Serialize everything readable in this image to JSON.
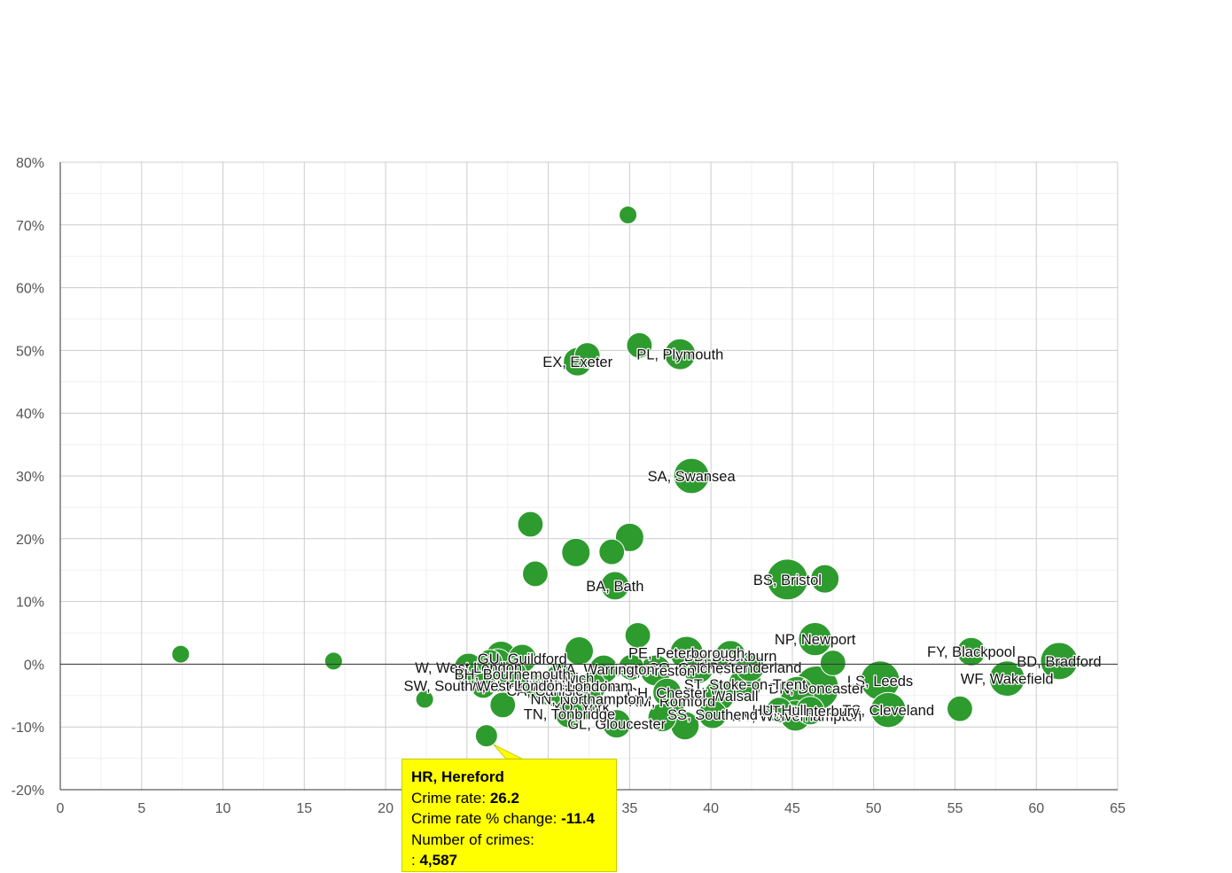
{
  "chart_data": {
    "type": "scatter",
    "title": "",
    "xlabel": "",
    "ylabel": "",
    "xlim": [
      0,
      65
    ],
    "ylim": [
      -20,
      80
    ],
    "x_ticks": [
      "0",
      "5",
      "10",
      "15",
      "20",
      "25",
      "30",
      "35",
      "40",
      "45",
      "50",
      "55",
      "60",
      "65"
    ],
    "y_ticks": [
      "-20%",
      "-10%",
      "0%",
      "10%",
      "20%",
      "30%",
      "40%",
      "50%",
      "60%",
      "70%",
      "80%"
    ],
    "grid": true,
    "bubble_color": "#2e9b2e",
    "points": [
      {
        "x": 7.4,
        "y": 1.6,
        "size": 1,
        "label": ""
      },
      {
        "x": 16.8,
        "y": 0.5,
        "size": 1,
        "label": ""
      },
      {
        "x": 22.4,
        "y": -5.6,
        "size": 1,
        "label": ""
      },
      {
        "x": 26.2,
        "y": -11.4,
        "size": 2,
        "label": ""
      },
      {
        "x": 34.9,
        "y": 71.6,
        "size": 1,
        "label": ""
      },
      {
        "x": 35.6,
        "y": 50.8,
        "size": 3,
        "label": ""
      },
      {
        "x": 38.1,
        "y": 49.4,
        "size": 5,
        "label": "PL, Plymouth"
      },
      {
        "x": 32.4,
        "y": 49.2,
        "size": 3,
        "label": ""
      },
      {
        "x": 31.8,
        "y": 48.2,
        "size": 4,
        "label": "EX, Exeter"
      },
      {
        "x": 38.8,
        "y": 30.0,
        "size": 7,
        "label": "SA, Swansea"
      },
      {
        "x": 28.9,
        "y": 22.3,
        "size": 3,
        "label": ""
      },
      {
        "x": 35.0,
        "y": 20.2,
        "size": 4,
        "label": ""
      },
      {
        "x": 31.7,
        "y": 17.8,
        "size": 4,
        "label": ""
      },
      {
        "x": 33.9,
        "y": 17.9,
        "size": 3,
        "label": ""
      },
      {
        "x": 29.2,
        "y": 14.4,
        "size": 3,
        "label": ""
      },
      {
        "x": 34.1,
        "y": 12.5,
        "size": 4,
        "label": "BA, Bath"
      },
      {
        "x": 44.7,
        "y": 13.5,
        "size": 10,
        "label": "BS, Bristol"
      },
      {
        "x": 47.0,
        "y": 13.6,
        "size": 4,
        "label": ""
      },
      {
        "x": 35.5,
        "y": 4.6,
        "size": 3,
        "label": ""
      },
      {
        "x": 46.4,
        "y": 4.0,
        "size": 6,
        "label": "NP, Newport"
      },
      {
        "x": 56.0,
        "y": 2.0,
        "size": 4,
        "label": "FY, Blackpool"
      },
      {
        "x": 61.4,
        "y": 0.5,
        "size": 8,
        "label": "BD, Bradford"
      },
      {
        "x": 58.2,
        "y": -2.3,
        "size": 7,
        "label": "WF, Wakefield"
      },
      {
        "x": 55.3,
        "y": -7.1,
        "size": 3,
        "label": ""
      },
      {
        "x": 50.9,
        "y": -7.3,
        "size": 7,
        "label": "TS, Cleveland"
      },
      {
        "x": 50.4,
        "y": -2.6,
        "size": 9,
        "label": "LS, Leeds"
      },
      {
        "x": 47.5,
        "y": 0.2,
        "size": 3,
        "label": ""
      },
      {
        "x": 46.5,
        "y": -3.8,
        "size": 12,
        "label": "DN, Doncaster"
      },
      {
        "x": 45.3,
        "y": -4.6,
        "size": 6,
        "label": ""
      },
      {
        "x": 45.2,
        "y": -8.2,
        "size": 5,
        "label": "WV, Wolverhampton"
      },
      {
        "x": 46.1,
        "y": -7.4,
        "size": 4,
        "label": "CT, Canterbury"
      },
      {
        "x": 44.2,
        "y": -7.3,
        "size": 3,
        "label": "HU, Hull"
      },
      {
        "x": 42.1,
        "y": -3.2,
        "size": 6,
        "label": "ST, Stoke-on-Trent"
      },
      {
        "x": 42.4,
        "y": -0.5,
        "size": 4,
        "label": "SR, Sunderland"
      },
      {
        "x": 41.2,
        "y": 1.3,
        "size": 5,
        "label": "BB, Blackburn"
      },
      {
        "x": 40.5,
        "y": -5.0,
        "size": 5,
        "label": "WS, Walsall"
      },
      {
        "x": 40.1,
        "y": -8.0,
        "size": 4,
        "label": "SS, Southend"
      },
      {
        "x": 38.5,
        "y": 1.8,
        "size": 6,
        "label": "PE, Peterborough"
      },
      {
        "x": 39.2,
        "y": -0.6,
        "size": 5,
        "label": "CO, Colchester"
      },
      {
        "x": 38.4,
        "y": -9.8,
        "size": 4,
        "label": ""
      },
      {
        "x": 37.6,
        "y": -5.9,
        "size": 4,
        "label": "RM, Romford"
      },
      {
        "x": 37.3,
        "y": -4.5,
        "size": 4,
        "label": "CH, Chester"
      },
      {
        "x": 37.0,
        "y": -8.5,
        "size": 4,
        "label": ""
      },
      {
        "x": 36.6,
        "y": -1.0,
        "size": 5,
        "label": "PR, Preston"
      },
      {
        "x": 35.1,
        "y": -0.5,
        "size": 3,
        "label": ""
      },
      {
        "x": 34.2,
        "y": -9.5,
        "size": 4,
        "label": "GL, Gloucester"
      },
      {
        "x": 33.4,
        "y": -0.8,
        "size": 4,
        "label": "WA, Warrington"
      },
      {
        "x": 32.7,
        "y": -3.5,
        "size": 4,
        "label": "DH, Durham"
      },
      {
        "x": 32.0,
        "y": -6.8,
        "size": 4,
        "label": "YO, York"
      },
      {
        "x": 31.9,
        "y": 2.1,
        "size": 4,
        "label": ""
      },
      {
        "x": 32.4,
        "y": -5.5,
        "size": 4,
        "label": "NN, Northampton"
      },
      {
        "x": 31.3,
        "y": -7.9,
        "size": 4,
        "label": "TN, Tonbridge"
      },
      {
        "x": 30.7,
        "y": -2.2,
        "size": 4,
        "label": "IP, Ipswich"
      },
      {
        "x": 29.8,
        "y": -4.2,
        "size": 4,
        "label": "CA, Carlisle"
      },
      {
        "x": 29.3,
        "y": -3.5,
        "size": 4,
        "label": "NW, North West London"
      },
      {
        "x": 28.4,
        "y": 0.9,
        "size": 4,
        "label": "GU, Guildford"
      },
      {
        "x": 27.1,
        "y": 1.2,
        "size": 5,
        "label": ""
      },
      {
        "x": 26.9,
        "y": 0.2,
        "size": 4,
        "label": ""
      },
      {
        "x": 26.4,
        "y": 0.3,
        "size": 3,
        "label": ""
      },
      {
        "x": 26.0,
        "y": -3.4,
        "size": 3,
        "label": "SW, South West London"
      },
      {
        "x": 27.2,
        "y": -6.5,
        "size": 3,
        "label": ""
      },
      {
        "x": 25.1,
        "y": -0.5,
        "size": 4,
        "label": "W, West London"
      },
      {
        "x": 27.8,
        "y": -1.6,
        "size": 4,
        "label": "BH, Bournemouth"
      },
      {
        "x": 29.1,
        "y": -3.0,
        "size": 3,
        "label": ""
      },
      {
        "x": 30.5,
        "y": -4.6,
        "size": 4,
        "label": ""
      }
    ],
    "tooltip": {
      "title": "HR, Hereford",
      "rate_label": "Crime rate:",
      "rate_value": "26.2",
      "change_label": "Crime rate % change:",
      "change_value": "-11.4",
      "count_label": "Number of crimes:",
      "count_prefix": ":",
      "count_value": "4,587"
    }
  }
}
